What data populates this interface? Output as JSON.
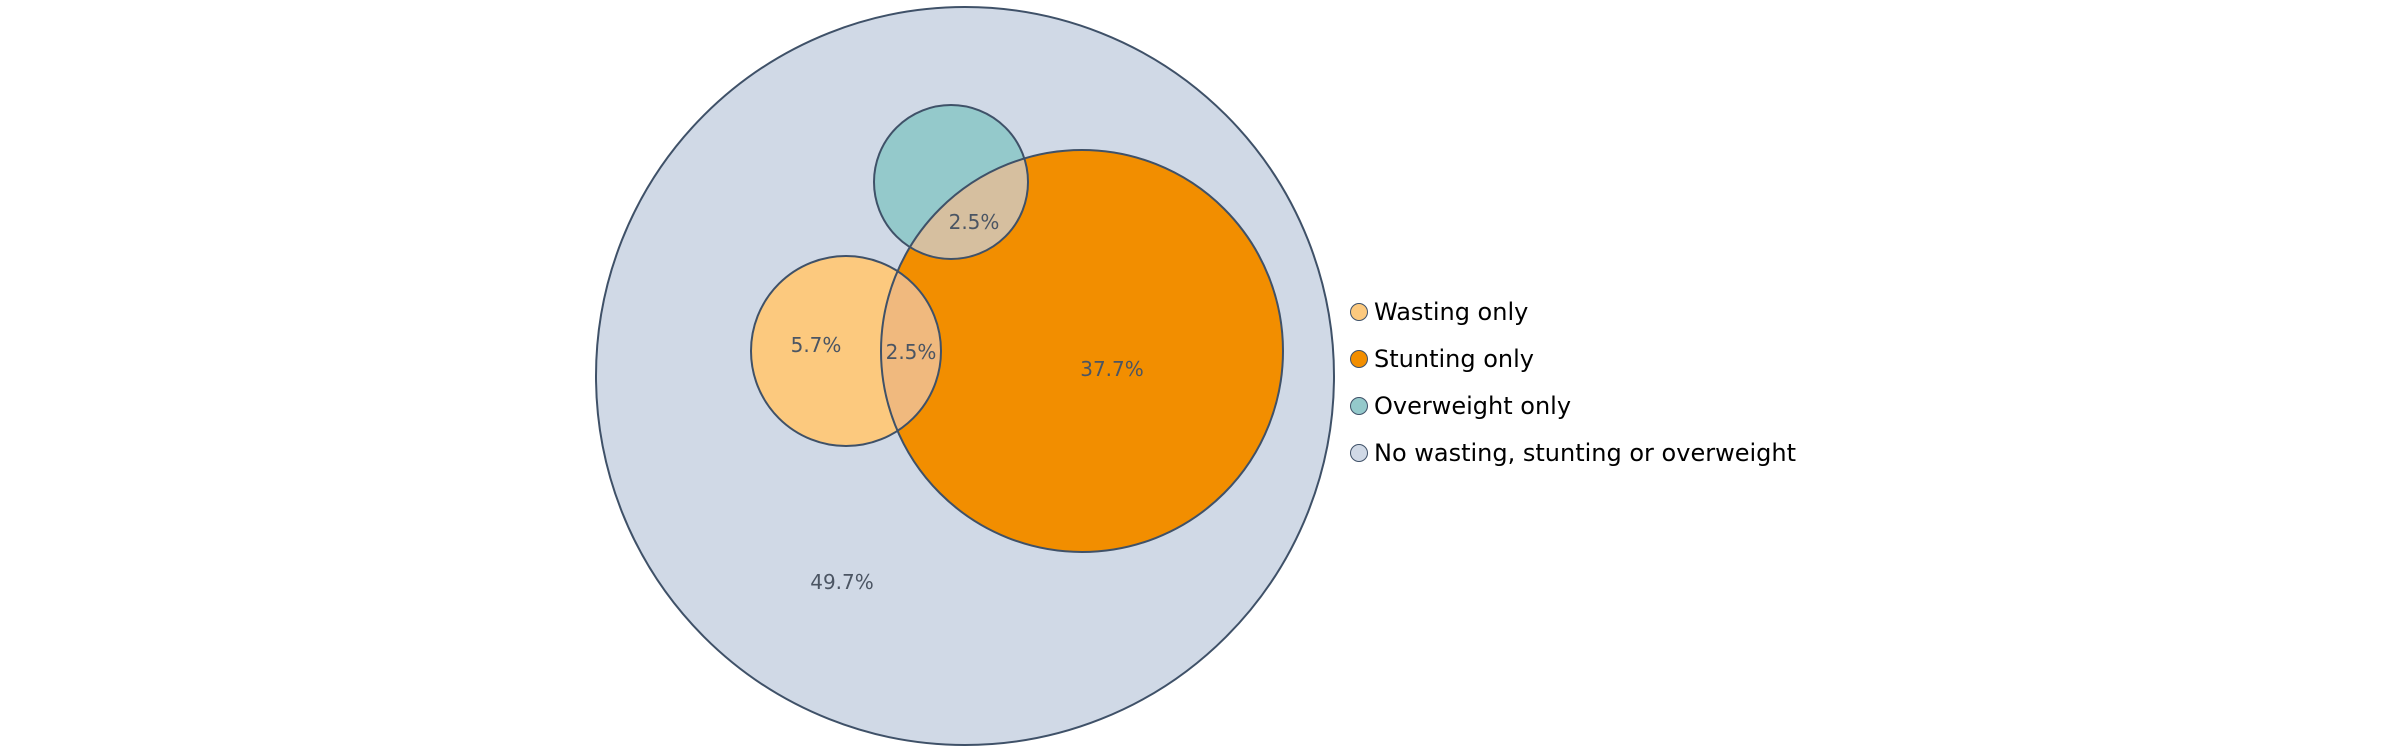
{
  "diagram": {
    "sets": [
      {
        "key": "none",
        "fill": "#d0d9e6"
      },
      {
        "key": "overweight",
        "fill": "#94c9cb"
      },
      {
        "key": "stunting",
        "fill": "#f28e00"
      },
      {
        "key": "wasting",
        "fill": "#fcc97e"
      }
    ],
    "regions": [
      {
        "key": "none",
        "label": "49.7%"
      },
      {
        "key": "wasting",
        "label": "5.7%"
      },
      {
        "key": "stunting",
        "label": "37.7%"
      },
      {
        "key": "wasting_stunting",
        "label": "2.5%",
        "fill": "#f0b97e"
      },
      {
        "key": "overweight_stunting",
        "label": "2.5%",
        "fill": "#d6bf9f"
      }
    ],
    "stroke": "#3f5168"
  },
  "legend": {
    "items": [
      {
        "label": "Wasting only",
        "color": "#fcc97e"
      },
      {
        "label": "Stunting only",
        "color": "#f28e00"
      },
      {
        "label": "Overweight only",
        "color": "#94c9cb"
      },
      {
        "label": "No wasting, stunting or overweight",
        "color": "#d0d9e6"
      }
    ]
  }
}
